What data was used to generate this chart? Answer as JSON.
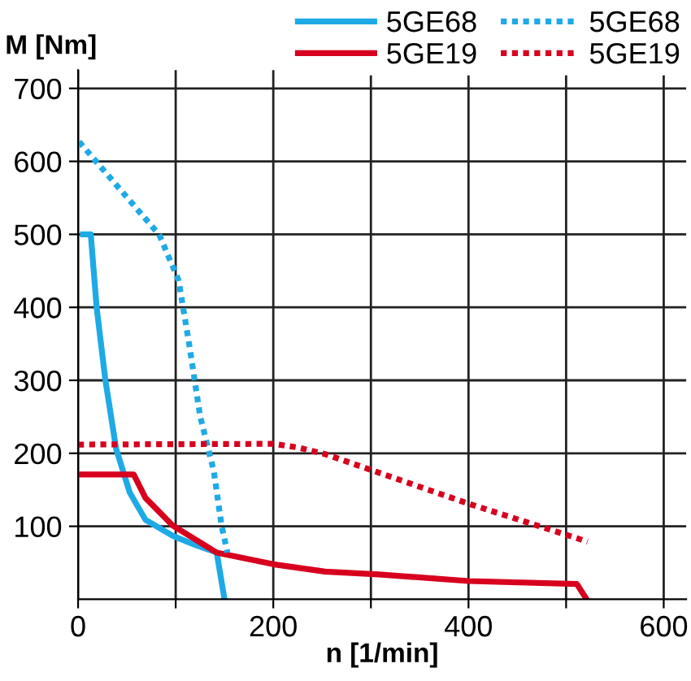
{
  "chart_data": {
    "type": "line",
    "xlabel": "n [1/min]",
    "ylabel": "M [Nm]",
    "xlim": [
      0,
      623
    ],
    "ylim": [
      0,
      725
    ],
    "xticks": [
      0,
      {
        "value": 100,
        "label": null
      },
      200,
      {
        "value": 300,
        "label": null
      },
      400,
      {
        "value": 500,
        "label": null
      },
      600
    ],
    "yticks": [
      100,
      200,
      300,
      400,
      500,
      600,
      700
    ],
    "grid": true,
    "legend": "top right",
    "marker": "none",
    "series": [
      {
        "name": "5GE68",
        "color": "#1eaae6",
        "line_style": "solid",
        "x": [
          5,
          13,
          19,
          28,
          39,
          53,
          69,
          97,
          119,
          142,
          150
        ],
        "values": [
          500,
          500,
          400,
          300,
          206,
          146,
          109,
          87,
          75,
          64,
          0
        ]
      },
      {
        "name": "5GE19",
        "color": "#d7001e",
        "line_style": "solid",
        "x": [
          0,
          57,
          69,
          97,
          142,
          200,
          253,
          308,
          400,
          511,
          521
        ],
        "values": [
          171,
          171,
          139,
          101,
          64,
          48,
          38,
          34,
          25,
          21,
          0
        ]
      },
      {
        "name": "5GE68",
        "color": "#1eaae6",
        "line_style": "dotted",
        "x": [
          1,
          75,
          83,
          103,
          114,
          125,
          139,
          147,
          153
        ],
        "values": [
          627,
          512,
          500,
          437,
          348,
          251,
          176,
          101,
          64
        ]
      },
      {
        "name": "5GE19",
        "color": "#d7001e",
        "line_style": "dotted",
        "x": [
          0,
          200,
          225,
          253,
          400,
          522
        ],
        "values": [
          212,
          213,
          208,
          199,
          131,
          79
        ]
      }
    ]
  }
}
